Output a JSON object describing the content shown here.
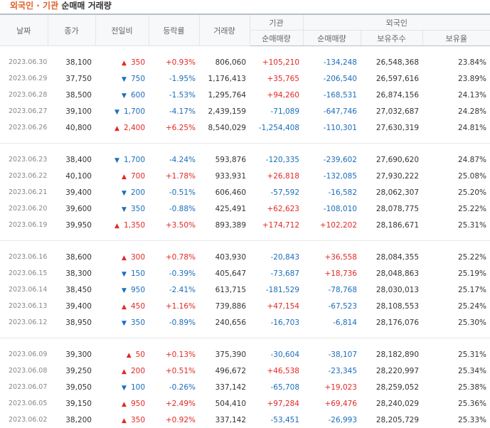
{
  "title": {
    "accent": "외국인 · 기관",
    "rest": "순매매 거래량"
  },
  "colors": {
    "up": "#e22926",
    "down": "#1a6dbb",
    "accent": "#e05d24"
  },
  "headers": {
    "date": "날짜",
    "close": "종가",
    "change": "전일비",
    "rate": "등락률",
    "volume": "거래량",
    "inst": "기관",
    "inst_net": "순매매량",
    "foreign": "외국인",
    "foreign_net": "순매매량",
    "foreign_hold": "보유주수",
    "foreign_ratio": "보유율"
  },
  "groups": [
    [
      {
        "date": "2023.06.30",
        "close": "38,100",
        "dir": "up",
        "change": "350",
        "rate": "+0.93%",
        "volume": "806,060",
        "inst": "+105,210",
        "foreign": "-134,248",
        "hold": "26,548,368",
        "ratio": "23.84%"
      },
      {
        "date": "2023.06.29",
        "close": "37,750",
        "dir": "down",
        "change": "750",
        "rate": "-1.95%",
        "volume": "1,176,413",
        "inst": "+35,765",
        "foreign": "-206,540",
        "hold": "26,597,616",
        "ratio": "23.89%"
      },
      {
        "date": "2023.06.28",
        "close": "38,500",
        "dir": "down",
        "change": "600",
        "rate": "-1.53%",
        "volume": "1,295,764",
        "inst": "+94,260",
        "foreign": "-168,531",
        "hold": "26,874,156",
        "ratio": "24.13%"
      },
      {
        "date": "2023.06.27",
        "close": "39,100",
        "dir": "down",
        "change": "1,700",
        "rate": "-4.17%",
        "volume": "2,439,159",
        "inst": "-71,089",
        "foreign": "-647,746",
        "hold": "27,032,687",
        "ratio": "24.28%"
      },
      {
        "date": "2023.06.26",
        "close": "40,800",
        "dir": "up",
        "change": "2,400",
        "rate": "+6.25%",
        "volume": "8,540,029",
        "inst": "-1,254,408",
        "foreign": "-110,301",
        "hold": "27,630,319",
        "ratio": "24.81%"
      }
    ],
    [
      {
        "date": "2023.06.23",
        "close": "38,400",
        "dir": "down",
        "change": "1,700",
        "rate": "-4.24%",
        "volume": "593,876",
        "inst": "-120,335",
        "foreign": "-239,602",
        "hold": "27,690,620",
        "ratio": "24.87%"
      },
      {
        "date": "2023.06.22",
        "close": "40,100",
        "dir": "up",
        "change": "700",
        "rate": "+1.78%",
        "volume": "933,931",
        "inst": "+26,818",
        "foreign": "-132,085",
        "hold": "27,930,222",
        "ratio": "25.08%"
      },
      {
        "date": "2023.06.21",
        "close": "39,400",
        "dir": "down",
        "change": "200",
        "rate": "-0.51%",
        "volume": "606,460",
        "inst": "-57,592",
        "foreign": "-16,582",
        "hold": "28,062,307",
        "ratio": "25.20%"
      },
      {
        "date": "2023.06.20",
        "close": "39,600",
        "dir": "down",
        "change": "350",
        "rate": "-0.88%",
        "volume": "425,491",
        "inst": "+62,623",
        "foreign": "-108,010",
        "hold": "28,078,775",
        "ratio": "25.22%"
      },
      {
        "date": "2023.06.19",
        "close": "39,950",
        "dir": "up",
        "change": "1,350",
        "rate": "+3.50%",
        "volume": "893,389",
        "inst": "+174,712",
        "foreign": "+102,202",
        "hold": "28,186,671",
        "ratio": "25.31%"
      }
    ],
    [
      {
        "date": "2023.06.16",
        "close": "38,600",
        "dir": "up",
        "change": "300",
        "rate": "+0.78%",
        "volume": "403,930",
        "inst": "-20,843",
        "foreign": "+36,558",
        "hold": "28,084,355",
        "ratio": "25.22%"
      },
      {
        "date": "2023.06.15",
        "close": "38,300",
        "dir": "down",
        "change": "150",
        "rate": "-0.39%",
        "volume": "405,647",
        "inst": "-73,687",
        "foreign": "+18,736",
        "hold": "28,048,863",
        "ratio": "25.19%"
      },
      {
        "date": "2023.06.14",
        "close": "38,450",
        "dir": "down",
        "change": "950",
        "rate": "-2.41%",
        "volume": "613,715",
        "inst": "-181,529",
        "foreign": "-78,768",
        "hold": "28,030,013",
        "ratio": "25.17%"
      },
      {
        "date": "2023.06.13",
        "close": "39,400",
        "dir": "up",
        "change": "450",
        "rate": "+1.16%",
        "volume": "739,886",
        "inst": "+47,154",
        "foreign": "-67,523",
        "hold": "28,108,553",
        "ratio": "25.24%"
      },
      {
        "date": "2023.06.12",
        "close": "38,950",
        "dir": "down",
        "change": "350",
        "rate": "-0.89%",
        "volume": "240,656",
        "inst": "-16,703",
        "foreign": "-6,814",
        "hold": "28,176,076",
        "ratio": "25.30%"
      }
    ],
    [
      {
        "date": "2023.06.09",
        "close": "39,300",
        "dir": "up",
        "change": "50",
        "rate": "+0.13%",
        "volume": "375,390",
        "inst": "-30,604",
        "foreign": "-38,107",
        "hold": "28,182,890",
        "ratio": "25.31%"
      },
      {
        "date": "2023.06.08",
        "close": "39,250",
        "dir": "up",
        "change": "200",
        "rate": "+0.51%",
        "volume": "496,672",
        "inst": "+46,538",
        "foreign": "-23,345",
        "hold": "28,220,997",
        "ratio": "25.34%"
      },
      {
        "date": "2023.06.07",
        "close": "39,050",
        "dir": "down",
        "change": "100",
        "rate": "-0.26%",
        "volume": "337,142",
        "inst": "-65,708",
        "foreign": "+19,023",
        "hold": "28,259,052",
        "ratio": "25.38%"
      },
      {
        "date": "2023.06.05",
        "close": "39,150",
        "dir": "up",
        "change": "950",
        "rate": "+2.49%",
        "volume": "504,410",
        "inst": "+97,284",
        "foreign": "+69,476",
        "hold": "28,240,029",
        "ratio": "25.36%"
      },
      {
        "date": "2023.06.02",
        "close": "38,200",
        "dir": "up",
        "change": "350",
        "rate": "+0.92%",
        "volume": "337,142",
        "inst": "-53,451",
        "foreign": "-26,993",
        "hold": "28,205,729",
        "ratio": "25.33%"
      }
    ]
  ]
}
